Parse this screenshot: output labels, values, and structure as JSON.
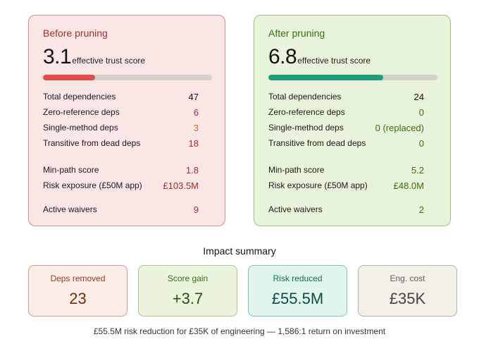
{
  "before": {
    "title": "Before pruning",
    "score": "3.1",
    "score_label": "effective trust score",
    "score_fraction": 0.31,
    "rows": [
      {
        "label": "Total dependencies",
        "value": "47"
      },
      {
        "label": "Zero-reference deps",
        "value": "6"
      },
      {
        "label": "Single-method deps",
        "value": "3"
      },
      {
        "label": "Transitive from dead deps",
        "value": "18"
      },
      {
        "label": "Min-path score",
        "value": "1.8"
      },
      {
        "label": "Risk exposure (£50M app)",
        "value": "£103.5M"
      },
      {
        "label": "Active waivers",
        "value": "9"
      }
    ]
  },
  "after": {
    "title": "After pruning",
    "score": "6.8",
    "score_label": "effective trust score",
    "score_fraction": 0.68,
    "rows": [
      {
        "label": "Total dependencies",
        "value": "24"
      },
      {
        "label": "Zero-reference deps",
        "value": "0"
      },
      {
        "label": "Single-method deps",
        "value": "0 (replaced)"
      },
      {
        "label": "Transitive from dead deps",
        "value": "0"
      },
      {
        "label": "Min-path score",
        "value": "5.2"
      },
      {
        "label": "Risk exposure (£50M app)",
        "value": "£48.0M"
      },
      {
        "label": "Active waivers",
        "value": "2"
      }
    ]
  },
  "summary": {
    "title": "Impact summary",
    "cards": [
      {
        "label": "Deps removed",
        "value": "23"
      },
      {
        "label": "Score gain",
        "value": "+3.7"
      },
      {
        "label": "Risk reduced",
        "value": "£55.5M"
      },
      {
        "label": "Eng. cost",
        "value": "£35K"
      }
    ],
    "footer": "£55.5M risk reduction for £35K of engineering — 1,586:1 return on investment"
  },
  "colors": {
    "before_bar": "#e24b4a",
    "after_bar": "#1d9e75"
  }
}
